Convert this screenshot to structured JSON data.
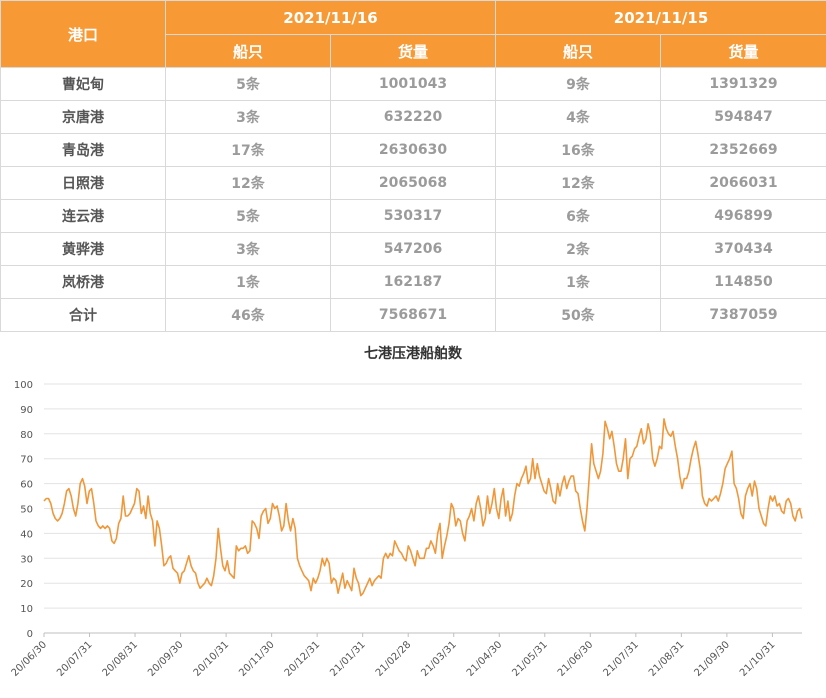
{
  "table": {
    "port_header": "港口",
    "date1": "2021/11/16",
    "date2": "2021/11/15",
    "ships_header": "船只",
    "cargo_header": "货量",
    "rows": [
      {
        "port": "曹妃甸",
        "ships1": "5条",
        "cargo1": "1001043",
        "ships2": "9条",
        "cargo2": "1391329"
      },
      {
        "port": "京唐港",
        "ships1": "3条",
        "cargo1": "632220",
        "ships2": "4条",
        "cargo2": "594847"
      },
      {
        "port": "青岛港",
        "ships1": "17条",
        "cargo1": "2630630",
        "ships2": "16条",
        "cargo2": "2352669"
      },
      {
        "port": "日照港",
        "ships1": "12条",
        "cargo1": "2065068",
        "ships2": "12条",
        "cargo2": "2066031"
      },
      {
        "port": "连云港",
        "ships1": "5条",
        "cargo1": "530317",
        "ships2": "6条",
        "cargo2": "496899"
      },
      {
        "port": "黄骅港",
        "ships1": "3条",
        "cargo1": "547206",
        "ships2": "2条",
        "cargo2": "370434"
      },
      {
        "port": "岚桥港",
        "ships1": "1条",
        "cargo1": "162187",
        "ships2": "1条",
        "cargo2": "114850"
      },
      {
        "port": "合计",
        "ships1": "46条",
        "cargo1": "7568671",
        "ships2": "50条",
        "cargo2": "7387059"
      }
    ]
  },
  "colors": {
    "header": "#f79a35",
    "line": "#f0973a"
  },
  "chart_data": {
    "type": "line",
    "title": "七港压港船舶数",
    "xlabel": "",
    "ylabel": "",
    "ylim": [
      0,
      100
    ],
    "yticks": [
      0,
      10,
      20,
      30,
      40,
      50,
      60,
      70,
      80,
      90,
      100
    ],
    "xticks": [
      "20/06/30",
      "20/07/31",
      "20/08/31",
      "20/09/30",
      "20/10/31",
      "20/11/30",
      "20/12/31",
      "21/01/31",
      "21/02/28",
      "21/03/31",
      "21/04/30",
      "21/05/31",
      "21/06/30",
      "21/07/31",
      "21/08/31",
      "21/09/30",
      "21/10/31"
    ],
    "grid": true,
    "legend": "none",
    "series": [
      {
        "values": [
          53,
          54,
          54,
          52,
          48,
          46,
          45,
          46,
          48,
          52,
          57,
          58,
          55,
          50,
          47,
          52,
          60,
          62,
          59,
          52,
          57,
          58,
          52,
          45,
          43,
          42,
          43,
          42,
          43,
          42,
          37,
          36,
          38,
          44,
          46,
          55,
          47,
          47,
          48,
          50,
          52,
          58,
          57,
          48,
          51,
          46,
          55,
          48,
          45,
          35,
          45,
          42,
          35,
          27,
          28,
          30,
          31,
          26,
          25,
          24,
          20,
          24,
          25,
          28,
          31,
          27,
          25,
          24,
          20,
          18,
          19,
          20,
          22,
          20,
          19,
          23,
          30,
          42,
          34,
          27,
          25,
          29,
          24,
          23,
          22,
          35,
          33,
          34,
          34,
          35,
          32,
          33,
          45,
          44,
          42,
          38,
          47,
          49,
          50,
          44,
          46,
          52,
          50,
          51,
          47,
          41,
          43,
          52,
          45,
          41,
          46,
          42,
          30,
          27,
          25,
          23,
          22,
          21,
          17,
          22,
          20,
          22,
          25,
          30,
          27,
          30,
          28,
          20,
          22,
          21,
          16,
          20,
          24,
          18,
          21,
          19,
          17,
          26,
          22,
          20,
          15,
          16,
          18,
          20,
          22,
          19,
          21,
          22,
          23,
          22,
          30,
          32,
          30,
          32,
          31,
          37,
          35,
          33,
          32,
          30,
          29,
          35,
          33,
          30,
          27,
          33,
          30,
          30,
          30,
          34,
          34,
          37,
          35,
          32,
          40,
          44,
          30,
          35,
          39,
          44,
          52,
          50,
          43,
          46,
          45,
          40,
          37,
          45,
          47,
          50,
          45,
          52,
          55,
          50,
          43,
          46,
          55,
          48,
          52,
          58,
          50,
          46,
          54,
          58,
          47,
          53,
          45,
          48,
          55,
          60,
          59,
          62,
          64,
          67,
          60,
          62,
          70,
          62,
          68,
          63,
          60,
          57,
          56,
          62,
          58,
          53,
          52,
          60,
          55,
          60,
          63,
          58,
          61,
          63,
          63,
          57,
          56,
          50,
          45,
          41,
          50,
          63,
          76,
          68,
          65,
          62,
          65,
          72,
          85,
          82,
          78,
          81,
          75,
          68,
          65,
          65,
          70,
          78,
          62,
          70,
          71,
          74,
          75,
          79,
          82,
          76,
          78,
          84,
          80,
          70,
          67,
          70,
          75,
          74,
          86,
          82,
          80,
          79,
          81,
          75,
          70,
          63,
          58,
          62,
          62,
          65,
          70,
          74,
          77,
          72,
          66,
          55,
          52,
          51,
          54,
          53,
          54,
          55,
          53,
          56,
          60,
          66,
          68,
          70,
          73,
          60,
          58,
          54,
          48,
          46,
          55,
          58,
          60,
          55,
          61,
          58,
          50,
          47,
          44,
          43,
          50,
          55,
          53,
          55,
          51,
          52,
          49,
          48,
          53,
          54,
          52,
          47,
          45,
          49,
          50,
          46
        ]
      }
    ]
  }
}
